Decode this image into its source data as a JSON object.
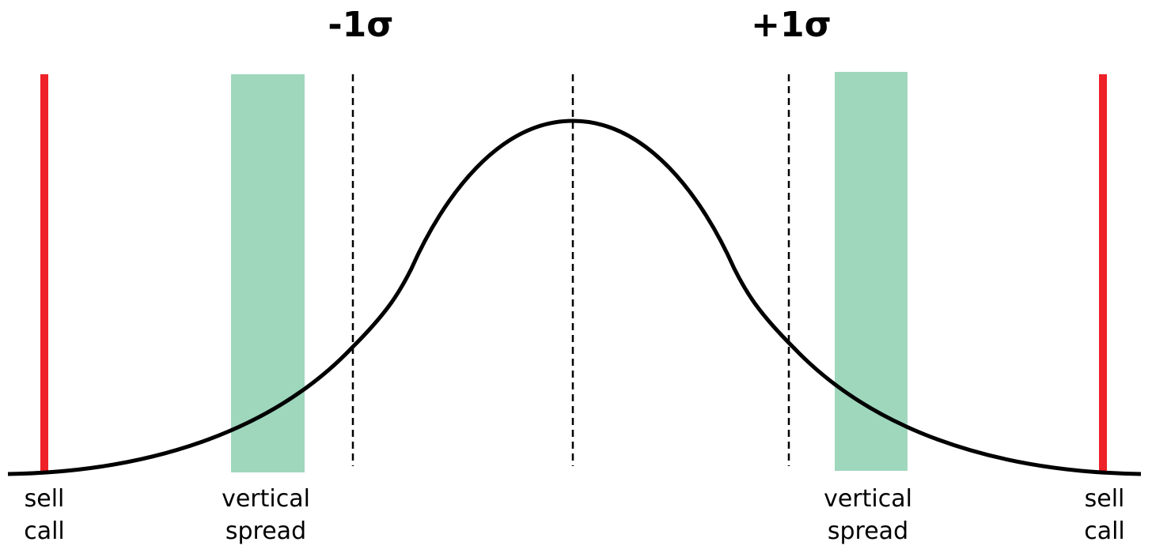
{
  "header": {
    "sigma_labels": [
      "-1σ",
      "+1σ"
    ]
  },
  "annotations": [
    {
      "lines": [
        "sell",
        "call"
      ]
    },
    {
      "lines": [
        "vertical",
        "spread"
      ]
    },
    {
      "lines": [
        "vertical",
        "spread"
      ]
    },
    {
      "lines": [
        "sell",
        "call"
      ]
    }
  ]
}
